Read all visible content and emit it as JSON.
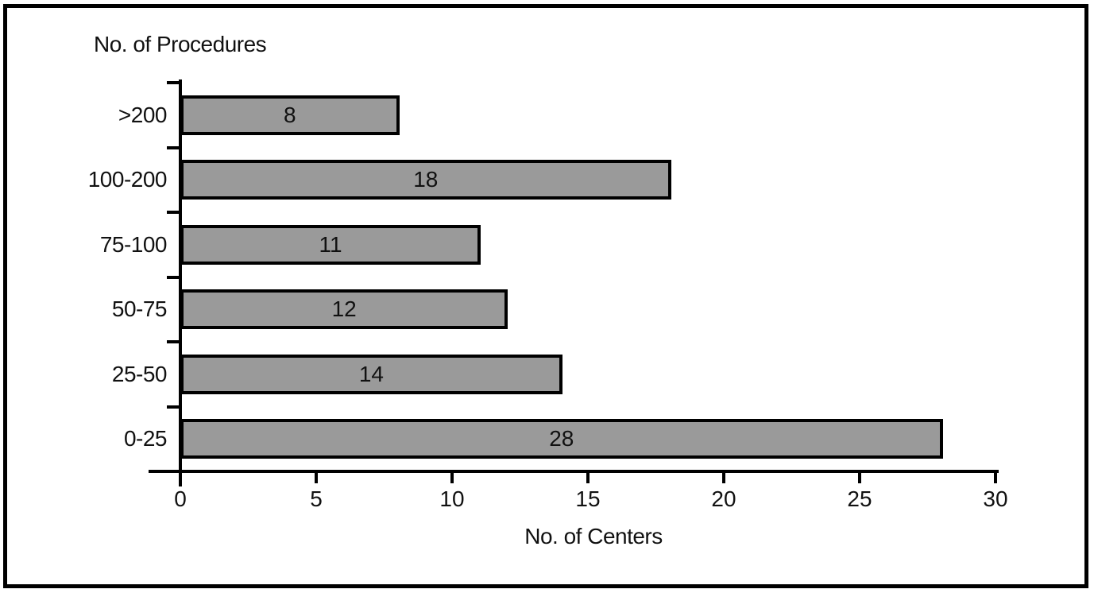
{
  "chart_data": {
    "type": "bar",
    "orientation": "horizontal",
    "title": "No. of Procedures",
    "xlabel": "No. of Centers",
    "categories": [
      ">200",
      "100-200",
      "75-100",
      "50-75",
      "25-50",
      "0-25"
    ],
    "values": [
      8,
      18,
      11,
      12,
      14,
      28
    ],
    "x_ticks": [
      0,
      5,
      10,
      15,
      20,
      25,
      30
    ],
    "xlim": [
      0,
      30
    ],
    "grid": false,
    "legend": "none",
    "value_labels": "centered-inside-bars",
    "bar_fill_color": "#9a9a9a",
    "bar_border_color": "#000000",
    "axis_color": "#000000",
    "frame_color": "#000000",
    "background_color": "#ffffff"
  }
}
